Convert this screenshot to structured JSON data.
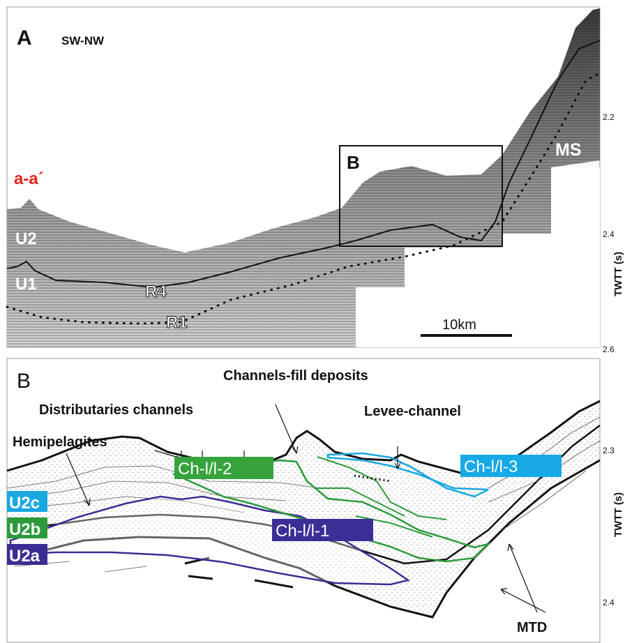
{
  "panel_a": {
    "letter": "A",
    "direction": "SW-NW",
    "profile": "a-a´",
    "inset": "B",
    "units": {
      "u2": "U2",
      "u1": "U1",
      "r4": "R4",
      "r1": "R1",
      "ms": "MS"
    },
    "scale_bar": "10km",
    "axis_title": "TWTT (s)",
    "ticks": [
      "2.2",
      "2.4",
      "2.6"
    ]
  },
  "panel_b": {
    "letter": "B",
    "labels": {
      "channels_fill": "Channels-fill deposits",
      "distributaries": "Distributaries channels",
      "levee": "Levee-channel",
      "hemipelagites": "Hemipelagites",
      "mtd": "MTD"
    },
    "channels": {
      "ch1": "Ch-l/l-1",
      "ch2": "Ch-l/l-2",
      "ch3": "Ch-l/l-3"
    },
    "units": {
      "u2c": "U2c",
      "u2b": "U2b",
      "u2a": "U2a"
    },
    "axis_title": "TWTT (s)",
    "ticks": [
      "2.3",
      "2.4"
    ]
  },
  "colors": {
    "profile_label": "#e8221c",
    "u2c": "#19a7e0",
    "u2b": "#2c9a3c",
    "u2a": "#3a2d93",
    "ch1_fill": "#3b2f96",
    "ch2_fill": "#36a33d",
    "ch3_fill": "#17a9e6"
  }
}
